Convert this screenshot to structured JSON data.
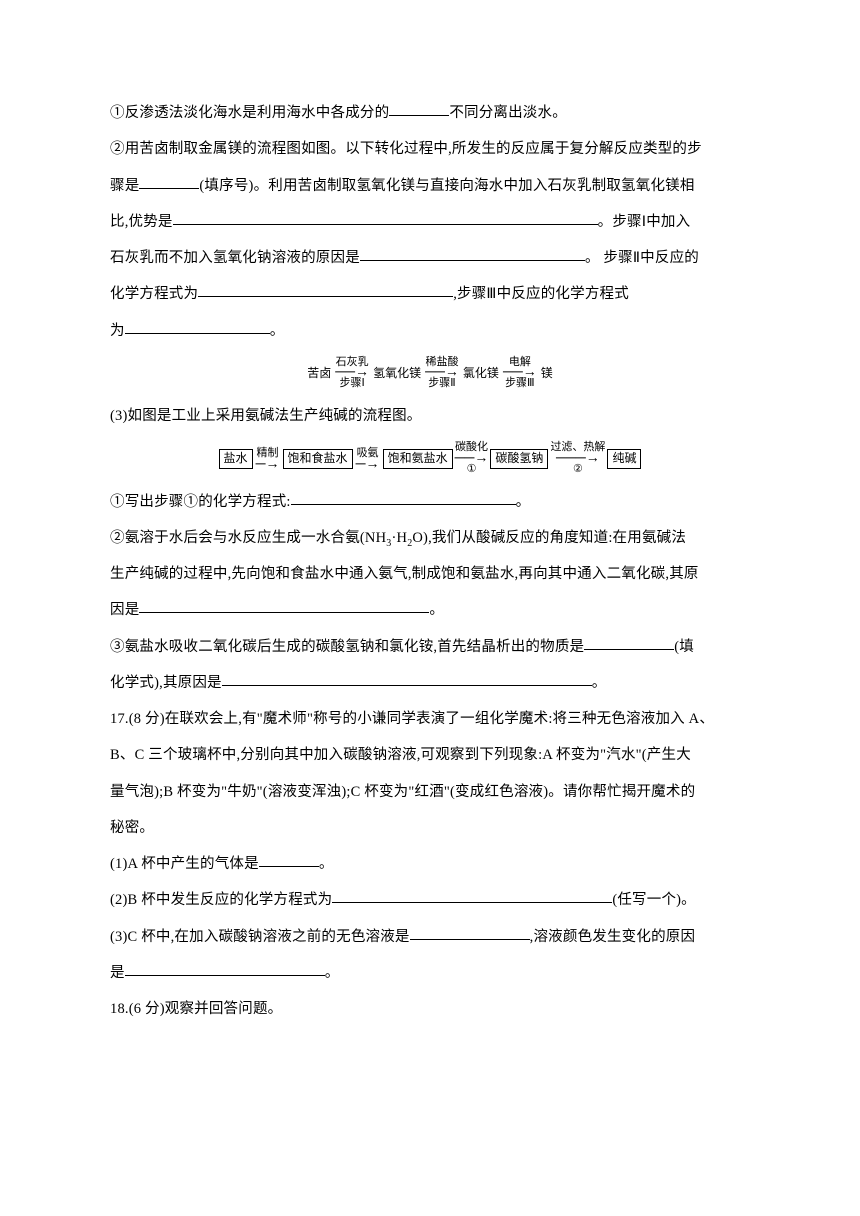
{
  "l1a": "①反渗透法淡化海水是利用海水中各成分的",
  "l1b": "不同分离出淡水。",
  "l2a": "②用苦卤制取金属镁的流程图如图。以下转化过程中,所发生的反应属于复分解反应类型的步",
  "l3a": "骤是",
  "l3b": "(填序号)。利用苦卤制取氢氧化镁与直接向海水中加入石灰乳制取氢氧化镁相",
  "l4a": "比,优势是",
  "l4b": "。步骤Ⅰ中加入",
  "l5a": "石灰乳而不加入氢氧化钠溶液的原因是",
  "l5b": "。 步骤Ⅱ中反应的",
  "l6a": "化学方程式为",
  "l6b": ",步骤Ⅲ中反应的化学方程式",
  "l7a": "为",
  "l7b": "。",
  "d1": {
    "n1": "苦卤",
    "a1t": "石灰乳",
    "a1b": "步骤Ⅰ",
    "n2": "氢氧化镁",
    "a2t": "稀盐酸",
    "a2b": "步骤Ⅱ",
    "n3": "氯化镁",
    "a3t": "电解",
    "a3b": "步骤Ⅲ",
    "n4": "镁"
  },
  "l8": "(3)如图是工业上采用氨碱法生产纯碱的流程图。",
  "d2": {
    "n1": "盐水",
    "a1": "精制",
    "n2": "饱和食盐水",
    "a2": "吸氨",
    "n3": "饱和氨盐水",
    "a3t": "碳酸化",
    "a3b": "①",
    "n4": "碳酸氢钠",
    "a4t": "过滤、热解",
    "a4b": "②",
    "n5": "纯碱"
  },
  "l9a": "①写出步骤①的化学方程式:",
  "l9b": "。",
  "l10a": "②氨溶于水后会与水反应生成一水合氨(NH",
  "l10a2": "·H",
  "l10a3": "O),我们从酸碱反应的角度知道:在用氨碱法",
  "l11": "生产纯碱的过程中,先向饱和食盐水中通入氨气,制成饱和氨盐水,再向其中通入二氧化碳,其原",
  "l12a": "因是",
  "l12b": "。",
  "l13a": "③氨盐水吸收二氧化碳后生成的碳酸氢钠和氯化铵,首先结晶析出的物质是",
  "l13b": "(填",
  "l14a": "化学式),其原因是",
  "l14b": "。",
  "l15": "17.(8 分)在联欢会上,有\"魔术师\"称号的小谦同学表演了一组化学魔术:将三种无色溶液加入 A、",
  "l16": "B、C 三个玻璃杯中,分别向其中加入碳酸钠溶液,可观察到下列现象:A 杯变为\"汽水\"(产生大",
  "l17": "量气泡);B 杯变为\"牛奶\"(溶液变浑浊);C 杯变为\"红酒\"(变成红色溶液)。请你帮忙揭开魔术的",
  "l18": "秘密。",
  "l19a": "(1)A 杯中产生的气体是",
  "l19b": "。",
  "l20a": "(2)B 杯中发生反应的化学方程式为",
  "l20b": "(任写一个)。",
  "l21a": "(3)C 杯中,在加入碳酸钠溶液之前的无色溶液是",
  "l21b": ",溶液颜色发生变化的原因",
  "l22a": "是",
  "l22b": "。",
  "l23": "18.(6 分)观察并回答问题。",
  "blanks": {
    "b1": 60,
    "b3": 60,
    "b4": 425,
    "b5": 225,
    "b6": 255,
    "b7": 145,
    "b9": 225,
    "b12": 290,
    "b13": 90,
    "b14": 370,
    "b19": 60,
    "b20": 280,
    "b21": 120,
    "b22": 200
  }
}
